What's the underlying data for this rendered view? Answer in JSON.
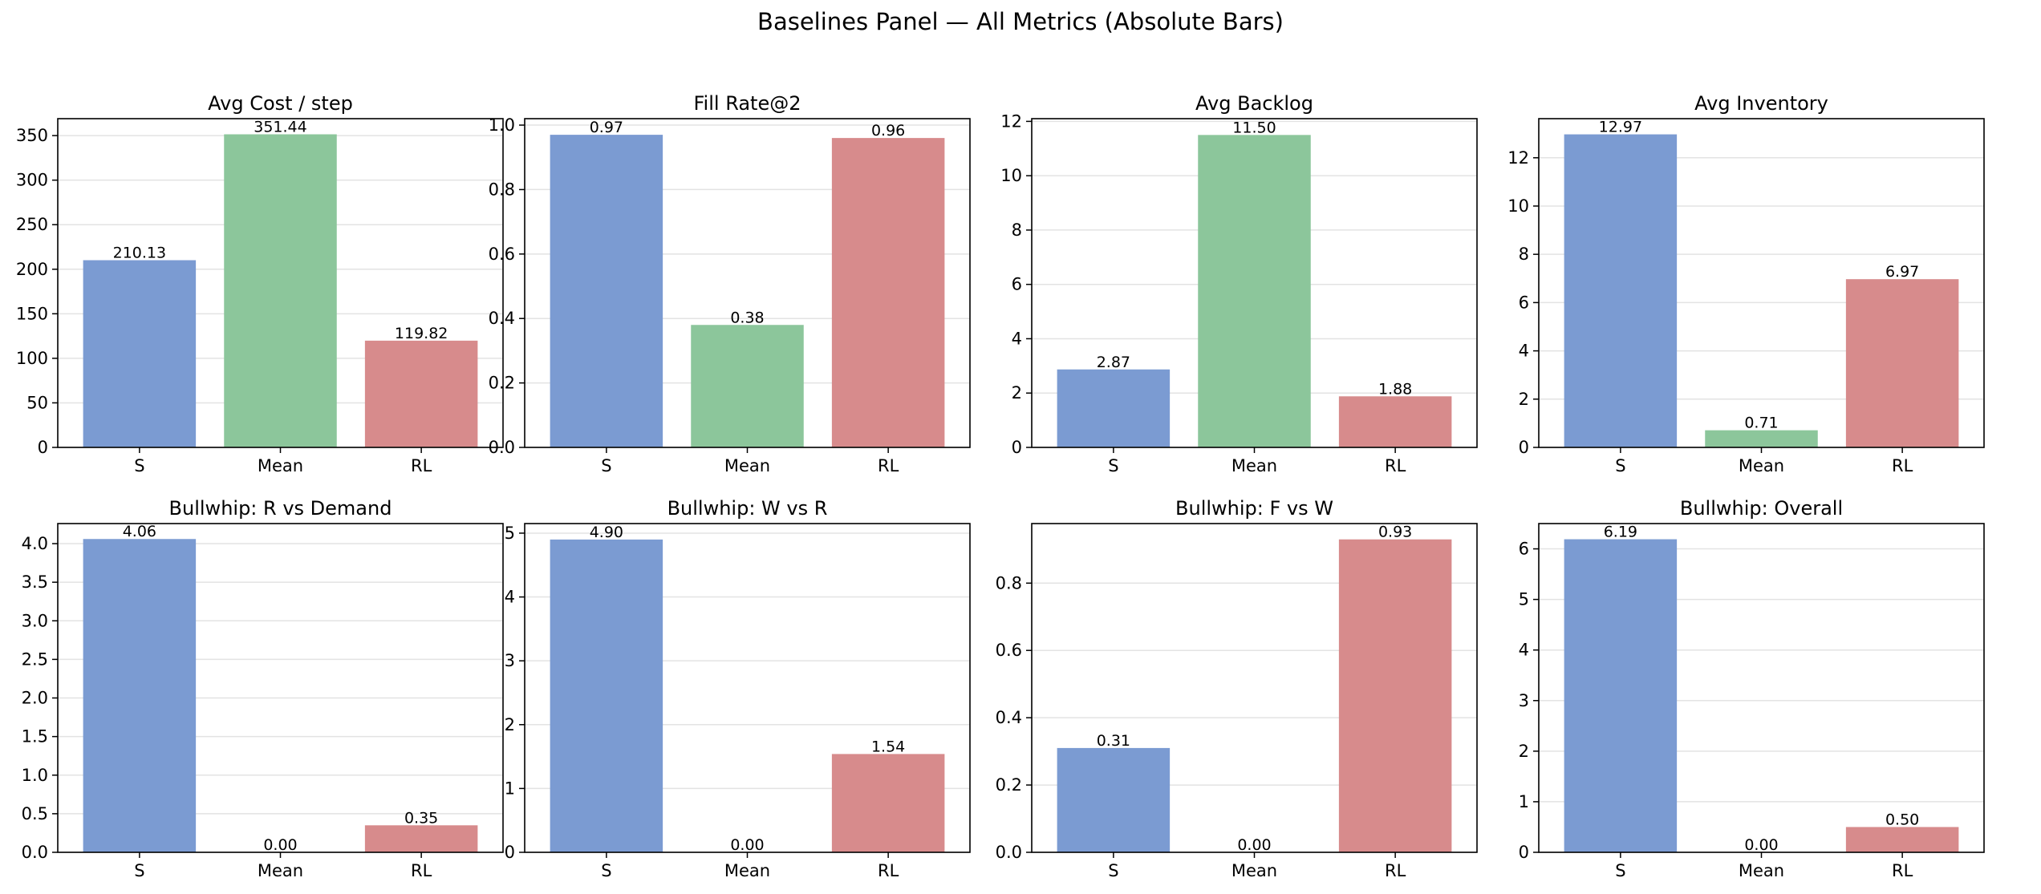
{
  "suptitle": "Baselines Panel — All Metrics (Absolute Bars)",
  "chart_data": [
    {
      "type": "bar",
      "title": "Avg Cost / step",
      "categories": [
        "S",
        "Mean",
        "RL"
      ],
      "values": [
        210.13,
        351.44,
        119.82
      ],
      "labels": [
        "210.13",
        "351.44",
        "119.82"
      ],
      "colors": [
        "#7b9bd2",
        "#8cc69b",
        "#d78b8c"
      ],
      "ylim": [
        0,
        369
      ],
      "yticks": [
        0,
        50,
        100,
        150,
        200,
        250,
        300,
        350
      ],
      "ytick_labels": [
        "0",
        "50",
        "100",
        "150",
        "200",
        "250",
        "300",
        "350"
      ],
      "grid": true
    },
    {
      "type": "bar",
      "title": "Fill Rate@2",
      "categories": [
        "S",
        "Mean",
        "RL"
      ],
      "values": [
        0.97,
        0.38,
        0.96
      ],
      "labels": [
        "0.97",
        "0.38",
        "0.96"
      ],
      "colors": [
        "#7b9bd2",
        "#8cc69b",
        "#d78b8c"
      ],
      "ylim": [
        0,
        1.02
      ],
      "yticks": [
        0,
        0.2,
        0.4,
        0.6,
        0.8,
        1.0
      ],
      "ytick_labels": [
        "0.0",
        "0.2",
        "0.4",
        "0.6",
        "0.8",
        "1.0"
      ],
      "grid": true
    },
    {
      "type": "bar",
      "title": "Avg Backlog",
      "categories": [
        "S",
        "Mean",
        "RL"
      ],
      "values": [
        2.87,
        11.5,
        1.88
      ],
      "labels": [
        "2.87",
        "11.50",
        "1.88"
      ],
      "colors": [
        "#7b9bd2",
        "#8cc69b",
        "#d78b8c"
      ],
      "ylim": [
        0,
        12.1
      ],
      "yticks": [
        0,
        2,
        4,
        6,
        8,
        10,
        12
      ],
      "ytick_labels": [
        "0",
        "2",
        "4",
        "6",
        "8",
        "10",
        "12"
      ],
      "grid": true
    },
    {
      "type": "bar",
      "title": "Avg Inventory",
      "categories": [
        "S",
        "Mean",
        "RL"
      ],
      "values": [
        12.97,
        0.71,
        6.97
      ],
      "labels": [
        "12.97",
        "0.71",
        "6.97"
      ],
      "colors": [
        "#7b9bd2",
        "#8cc69b",
        "#d78b8c"
      ],
      "ylim": [
        0,
        13.62
      ],
      "yticks": [
        0,
        2,
        4,
        6,
        8,
        10,
        12
      ],
      "ytick_labels": [
        "0",
        "2",
        "4",
        "6",
        "8",
        "10",
        "12"
      ],
      "grid": true
    },
    {
      "type": "bar",
      "title": "Bullwhip: R vs Demand",
      "categories": [
        "S",
        "Mean",
        "RL"
      ],
      "values": [
        4.06,
        0.0,
        0.35
      ],
      "labels": [
        "4.06",
        "0.00",
        "0.35"
      ],
      "colors": [
        "#7b9bd2",
        "#8cc69b",
        "#d78b8c"
      ],
      "ylim": [
        0,
        4.26
      ],
      "yticks": [
        0,
        0.5,
        1.0,
        1.5,
        2.0,
        2.5,
        3.0,
        3.5,
        4.0
      ],
      "ytick_labels": [
        "0.0",
        "0.5",
        "1.0",
        "1.5",
        "2.0",
        "2.5",
        "3.0",
        "3.5",
        "4.0"
      ],
      "grid": true
    },
    {
      "type": "bar",
      "title": "Bullwhip: W vs R",
      "categories": [
        "S",
        "Mean",
        "RL"
      ],
      "values": [
        4.9,
        0.0,
        1.54
      ],
      "labels": [
        "4.90",
        "0.00",
        "1.54"
      ],
      "colors": [
        "#7b9bd2",
        "#8cc69b",
        "#d78b8c"
      ],
      "ylim": [
        0,
        5.15
      ],
      "yticks": [
        0,
        1,
        2,
        3,
        4,
        5
      ],
      "ytick_labels": [
        "0",
        "1",
        "2",
        "3",
        "4",
        "5"
      ],
      "grid": true
    },
    {
      "type": "bar",
      "title": "Bullwhip: F vs W",
      "categories": [
        "S",
        "Mean",
        "RL"
      ],
      "values": [
        0.31,
        0.0,
        0.93
      ],
      "labels": [
        "0.31",
        "0.00",
        "0.93"
      ],
      "colors": [
        "#7b9bd2",
        "#8cc69b",
        "#d78b8c"
      ],
      "ylim": [
        0,
        0.977
      ],
      "yticks": [
        0,
        0.2,
        0.4,
        0.6,
        0.8
      ],
      "ytick_labels": [
        "0.0",
        "0.2",
        "0.4",
        "0.6",
        "0.8"
      ],
      "grid": true
    },
    {
      "type": "bar",
      "title": "Bullwhip: Overall",
      "categories": [
        "S",
        "Mean",
        "RL"
      ],
      "values": [
        6.19,
        0.0,
        0.5
      ],
      "labels": [
        "6.19",
        "0.00",
        "0.50"
      ],
      "colors": [
        "#7b9bd2",
        "#8cc69b",
        "#d78b8c"
      ],
      "ylim": [
        0,
        6.5
      ],
      "yticks": [
        0,
        1,
        2,
        3,
        4,
        5,
        6
      ],
      "ytick_labels": [
        "0",
        "1",
        "2",
        "3",
        "4",
        "5",
        "6"
      ],
      "grid": true
    }
  ]
}
